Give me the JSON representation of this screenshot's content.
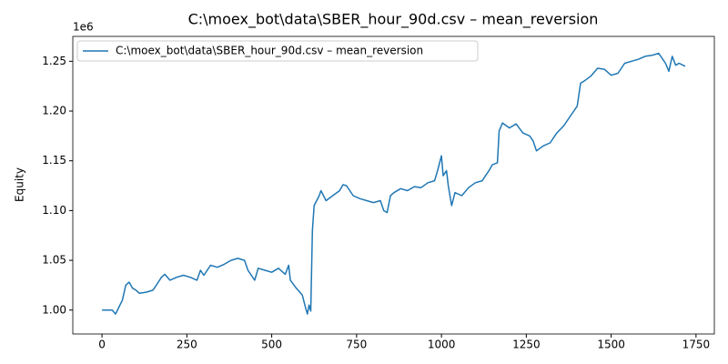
{
  "chart_data": {
    "type": "line",
    "title": "C:\\moex_bot\\data\\SBER_hour_90d.csv – mean_reversion",
    "y_label": "Equity",
    "y_offset_label": "1e6",
    "x": [
      0,
      20,
      30,
      40,
      50,
      60,
      70,
      80,
      90,
      100,
      110,
      130,
      150,
      160,
      175,
      185,
      200,
      220,
      240,
      260,
      280,
      290,
      300,
      320,
      340,
      360,
      380,
      400,
      420,
      430,
      440,
      450,
      460,
      480,
      500,
      520,
      540,
      550,
      555,
      570,
      590,
      600,
      605,
      610,
      615,
      620,
      625,
      640,
      645,
      660,
      680,
      700,
      710,
      720,
      740,
      760,
      780,
      800,
      820,
      830,
      840,
      850,
      860,
      880,
      900,
      920,
      940,
      960,
      980,
      990,
      1000,
      1005,
      1015,
      1020,
      1030,
      1040,
      1060,
      1080,
      1100,
      1120,
      1140,
      1150,
      1165,
      1170,
      1180,
      1200,
      1220,
      1240,
      1260,
      1270,
      1280,
      1300,
      1320,
      1340,
      1360,
      1380,
      1400,
      1410,
      1420,
      1440,
      1460,
      1480,
      1500,
      1520,
      1540,
      1560,
      1580,
      1600,
      1620,
      1640,
      1660,
      1670,
      1680,
      1690,
      1700,
      1718
    ],
    "series": [
      {
        "name": "C:\\moex_bot\\data\\SBER_hour_90d.csv – mean_reversion",
        "color": "#1f77b4",
        "values": [
          1.0,
          1.0,
          1.0,
          0.996,
          1.003,
          1.01,
          1.025,
          1.028,
          1.022,
          1.02,
          1.017,
          1.018,
          1.02,
          1.025,
          1.033,
          1.036,
          1.03,
          1.033,
          1.035,
          1.033,
          1.03,
          1.04,
          1.035,
          1.045,
          1.043,
          1.046,
          1.05,
          1.052,
          1.05,
          1.04,
          1.035,
          1.03,
          1.042,
          1.04,
          1.038,
          1.042,
          1.036,
          1.045,
          1.03,
          1.023,
          1.015,
          1.002,
          0.996,
          1.005,
          0.999,
          1.08,
          1.105,
          1.115,
          1.12,
          1.11,
          1.115,
          1.12,
          1.126,
          1.125,
          1.115,
          1.112,
          1.11,
          1.108,
          1.11,
          1.1,
          1.098,
          1.115,
          1.118,
          1.122,
          1.12,
          1.124,
          1.123,
          1.128,
          1.13,
          1.142,
          1.155,
          1.135,
          1.14,
          1.125,
          1.105,
          1.118,
          1.115,
          1.123,
          1.128,
          1.13,
          1.14,
          1.146,
          1.148,
          1.18,
          1.188,
          1.183,
          1.187,
          1.178,
          1.175,
          1.17,
          1.16,
          1.165,
          1.168,
          1.178,
          1.185,
          1.195,
          1.205,
          1.228,
          1.23,
          1.235,
          1.243,
          1.242,
          1.236,
          1.238,
          1.248,
          1.25,
          1.252,
          1.255,
          1.256,
          1.258,
          1.248,
          1.24,
          1.255,
          1.246,
          1.248,
          1.245
        ]
      }
    ],
    "xlim": [
      -86,
      1804
    ],
    "xticks": [
      0,
      250,
      500,
      750,
      1000,
      1250,
      1500,
      1750
    ],
    "ylim": [
      0.976,
      1.275
    ],
    "yticks": [
      {
        "value": 1,
        "label": "1.00"
      },
      {
        "value": 1.05,
        "label": "1.05"
      },
      {
        "value": 1.1,
        "label": "1.10"
      },
      {
        "value": 1.15,
        "label": "1.15"
      },
      {
        "value": 1.2,
        "label": "1.20"
      },
      {
        "value": 1.25,
        "label": "1.25"
      }
    ],
    "legend": "upper left"
  }
}
